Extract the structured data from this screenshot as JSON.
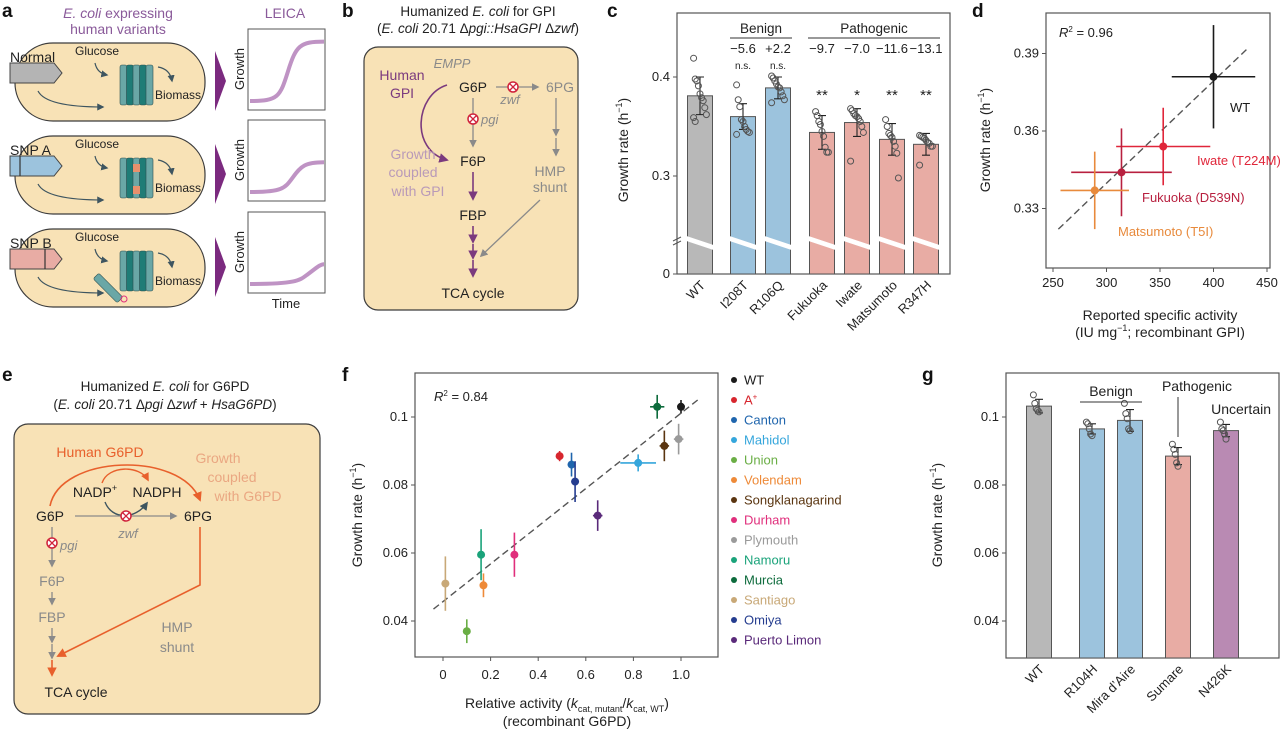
{
  "panels": {
    "a": {
      "letter": "a",
      "title_italic": "E. coli",
      "title_rest": " expressing",
      "title_line2": "human variants",
      "leica": "LEICA",
      "rows": [
        {
          "gene": "Normal",
          "glucose": "Glucose",
          "biomass": "Biomass",
          "ylabel": "Growth",
          "gene_color": "#b4b4b4",
          "growth_plateau": 0.9
        },
        {
          "gene": "SNP A",
          "glucose": "Glucose",
          "biomass": "Biomass",
          "ylabel": "Growth",
          "gene_color": "#9cc3dd",
          "growth_plateau": 0.45
        },
        {
          "gene": "SNP B",
          "glucose": "Glucose",
          "biomass": "Biomass",
          "ylabel": "Growth",
          "gene_color": "#e8aca4",
          "growth_plateau": 0.3
        }
      ],
      "xlabel": "Time",
      "colors": {
        "cell": "#f8e2b6",
        "protein": "#6aa7a6",
        "curve": "#bf93c4",
        "arrowhead": "#7b2a7f"
      }
    },
    "b": {
      "letter": "b",
      "title1_a": "Humanized ",
      "title1_i": "E. coli",
      "title1_b": " for GPI",
      "title2_a": "(",
      "title2_i": "E. coli",
      "title2_b": " 20.71 Δ",
      "title2_c": "pgi::HsaGPI",
      "title2_d": " Δ",
      "title2_e": "zwf",
      "title2_f": ")",
      "empp": "EMPP",
      "human_gpi": [
        "Human",
        "GPI"
      ],
      "g6p": "G6P",
      "sixpg": "6PG",
      "zwf": "zwf",
      "pgi": "pgi",
      "f6p": "F6P",
      "fbp": "FBP",
      "tca": "TCA cycle",
      "growth_coupled": [
        "Growth",
        "coupled",
        "with GPI"
      ],
      "hmp": [
        "HMP",
        "shunt"
      ],
      "colors": {
        "accent": "#7b3a7e",
        "muted": "#b99ab8",
        "knockout": "#d0243c"
      }
    },
    "e": {
      "letter": "e",
      "title1_a": "Humanized ",
      "title1_i": "E. coli",
      "title1_b": " for G6PD",
      "title2_a": "(",
      "title2_i": "E. coli",
      "title2_b": " 20.71 Δ",
      "title2_c": "pgi",
      "title2_d": " Δ",
      "title2_e": "zwf",
      "title2_f": "  + ",
      "title2_g": "HsaG6PD",
      "title2_h": ")",
      "human_g6pd": "Human G6PD",
      "growth_coupled": [
        "Growth",
        "coupled",
        "with G6PD"
      ],
      "nadp": "NADP",
      "nadp_sup": "+",
      "nadph": "NADPH",
      "g6p": "G6P",
      "sixpg": "6PG",
      "zwf": "zwf",
      "pgi": "pgi",
      "f6p": "F6P",
      "fbp": "FBP",
      "hmp": [
        "HMP",
        "shunt"
      ],
      "tca": "TCA cycle",
      "colors": {
        "accent": "#e8602c",
        "muted": "#eaa782",
        "knockout": "#d0243c"
      }
    }
  },
  "chart_data": [
    {
      "panel": "c",
      "type": "bar",
      "ylabel": "Growth rate (h",
      "ylabel_sup": "−1",
      "ylabel_end": ")",
      "yticks": [
        0,
        0.3,
        0.4
      ],
      "ytick_labels": [
        "0",
        "0.3",
        "0.4"
      ],
      "y_axis_break": true,
      "categories": [
        "WT",
        "I208T",
        "R106Q",
        "Fukuoka",
        "Iwate",
        "Matsumoto",
        "R347H"
      ],
      "values": [
        0.381,
        0.36,
        0.389,
        0.344,
        0.354,
        0.337,
        0.332
      ],
      "errors": [
        0.019,
        0.013,
        0.011,
        0.017,
        0.014,
        0.016,
        0.011
      ],
      "groups": [
        "WT",
        "Benign",
        "Benign",
        "Pathogenic",
        "Pathogenic",
        "Pathogenic",
        "Pathogenic"
      ],
      "group_labels": {
        "Benign": "Benign",
        "Pathogenic": "Pathogenic"
      },
      "effect_labels": [
        "",
        "−5.6",
        "+2.2",
        "−9.7",
        "−7.0",
        "−11.6",
        "−13.1"
      ],
      "significance": [
        "",
        "n.s.",
        "n.s.",
        "**",
        "*",
        "**",
        "**"
      ],
      "points": [
        [
          0.419,
          0.398,
          0.396,
          0.391,
          0.383,
          0.379,
          0.376,
          0.369,
          0.362,
          0.359,
          0.355
        ],
        [
          0.392,
          0.377,
          0.37,
          0.357,
          0.355,
          0.35,
          0.347,
          0.345,
          0.344,
          0.342
        ],
        [
          0.401,
          0.399,
          0.396,
          0.393,
          0.39,
          0.389,
          0.385,
          0.381,
          0.377,
          0.374
        ],
        [
          0.365,
          0.361,
          0.355,
          0.352,
          0.345,
          0.34,
          0.329,
          0.324,
          0.324
        ],
        [
          0.368,
          0.366,
          0.363,
          0.361,
          0.36,
          0.358,
          0.355,
          0.35,
          0.344,
          0.315
        ],
        [
          0.357,
          0.35,
          0.343,
          0.341,
          0.339,
          0.335,
          0.33,
          0.323,
          0.298
        ],
        [
          0.341,
          0.34,
          0.339,
          0.338,
          0.336,
          0.334,
          0.333,
          0.33,
          0.33,
          0.311
        ]
      ],
      "colors": {
        "WT": "#b8b8b8",
        "Benign": "#9cc3dd",
        "Pathogenic": "#e8aca4"
      }
    },
    {
      "panel": "d",
      "type": "scatter",
      "annotation": "R",
      "annotation_sup": "2",
      "annotation_val": " = 0.96",
      "xlabel": "Reported specific activity",
      "xlabel2_a": "(IU mg",
      "xlabel2_sup": "−1",
      "xlabel2_b": "; recombinant GPI)",
      "ylabel": "Growth rate (h",
      "ylabel_sup": "−1",
      "ylabel_end": ")",
      "xlim": [
        250,
        450
      ],
      "xticks": [
        250,
        300,
        350,
        400,
        450
      ],
      "yticks": [
        0.33,
        0.36,
        0.39
      ],
      "ytick_labels": [
        "0.33",
        "0.36",
        "0.39"
      ],
      "fit_line": [
        [
          255,
          0.322
        ],
        [
          432,
          0.392
        ]
      ],
      "points": [
        {
          "label": "WT",
          "x": 400,
          "y": 0.381,
          "xerr": 39,
          "yerr": 0.02,
          "color": "#1a1a1a"
        },
        {
          "label": "Iwate (T224M)",
          "x": 353,
          "y": 0.354,
          "xerr": 44,
          "yerr": 0.015,
          "color": "#e0263a"
        },
        {
          "label": "Fukuoka (D539N)",
          "x": 314,
          "y": 0.344,
          "xerr": 47,
          "yerr": 0.017,
          "color": "#b8203f"
        },
        {
          "label": "Matsumoto (T5I)",
          "x": 289,
          "y": 0.337,
          "xerr": 32,
          "yerr": 0.015,
          "color": "#e88a3c"
        }
      ]
    },
    {
      "panel": "f",
      "type": "scatter",
      "annotation": "R",
      "annotation_sup": "2",
      "annotation_val": " = 0.84",
      "xlabel_a": "Relative activity (",
      "xlabel_k1": "k",
      "xlabel_sub1": "cat, mutant",
      "xlabel_slash": "/",
      "xlabel_k2": "k",
      "xlabel_sub2": "cat, WT",
      "xlabel_b": ")",
      "xlabel2": "(recombinant G6PD)",
      "ylabel": "Growth rate (h",
      "ylabel_sup": "−1",
      "ylabel_end": ")",
      "xticks": [
        0,
        0.2,
        0.4,
        0.6,
        0.8,
        1.0
      ],
      "xtick_labels": [
        "0",
        "0.2",
        "0.4",
        "0.6",
        "0.8",
        "1.0"
      ],
      "yticks": [
        0.04,
        0.06,
        0.08,
        0.1
      ],
      "ytick_labels": [
        "0.04",
        "0.06",
        "0.08",
        "0.1"
      ],
      "legend_position": "right",
      "fit_line": [
        [
          -0.04,
          0.0435
        ],
        [
          1.07,
          0.105
        ]
      ],
      "points": [
        {
          "label": "WT",
          "sup": "",
          "x": 1.0,
          "y": 0.103,
          "xerr": 0,
          "yerr": 0.002,
          "color": "#1a1a1a"
        },
        {
          "label": "A",
          "sup": "+",
          "x": 0.49,
          "y": 0.0885,
          "xerr": 0,
          "yerr": 0.0015,
          "color": "#d7262e"
        },
        {
          "label": "Canton",
          "sup": "",
          "x": 0.54,
          "y": 0.086,
          "xerr": 0,
          "yerr": 0.0035,
          "color": "#1f65ad"
        },
        {
          "label": "Mahidol",
          "sup": "",
          "x": 0.82,
          "y": 0.0865,
          "xerr": 0.075,
          "yerr": 0.0025,
          "color": "#35a6dc"
        },
        {
          "label": "Union",
          "sup": "",
          "x": 0.1,
          "y": 0.037,
          "xerr": 0,
          "yerr": 0.0035,
          "color": "#6aae45"
        },
        {
          "label": "Volendam",
          "sup": "",
          "x": 0.17,
          "y": 0.0505,
          "xerr": 0,
          "yerr": 0.0035,
          "color": "#ee8a38"
        },
        {
          "label": "Songklanagarind",
          "sup": "",
          "x": 0.93,
          "y": 0.0915,
          "xerr": 0.02,
          "yerr": 0.0045,
          "color": "#5a3510"
        },
        {
          "label": "Durham",
          "sup": "",
          "x": 0.3,
          "y": 0.0595,
          "xerr": 0,
          "yerr": 0.0065,
          "color": "#e02f7c"
        },
        {
          "label": "Plymouth",
          "sup": "",
          "x": 0.99,
          "y": 0.0935,
          "xerr": 0.02,
          "yerr": 0.0045,
          "color": "#9a9a9a"
        },
        {
          "label": "Namoru",
          "sup": "",
          "x": 0.16,
          "y": 0.0595,
          "xerr": 0,
          "yerr": 0.0075,
          "color": "#1aa37a"
        },
        {
          "label": "Murcia",
          "sup": "",
          "x": 0.9,
          "y": 0.103,
          "xerr": 0.03,
          "yerr": 0.0035,
          "color": "#0d6b3c"
        },
        {
          "label": "Santiago",
          "sup": "",
          "x": 0.01,
          "y": 0.051,
          "xerr": 0,
          "yerr": 0.008,
          "color": "#c8a877"
        },
        {
          "label": "Omiya",
          "sup": "",
          "x": 0.555,
          "y": 0.081,
          "xerr": 0,
          "yerr": 0.006,
          "color": "#253d8f"
        },
        {
          "label": "Puerto Limon",
          "sup": "",
          "x": 0.65,
          "y": 0.071,
          "xerr": 0.02,
          "yerr": 0.0045,
          "color": "#5a2a7a"
        }
      ]
    },
    {
      "panel": "g",
      "type": "bar",
      "ylabel": "Growth rate (h",
      "ylabel_sup": "−1",
      "ylabel_end": ")",
      "yticks": [
        0.04,
        0.06,
        0.08,
        0.1
      ],
      "ytick_labels": [
        "0.04",
        "0.06",
        "0.08",
        "0.1"
      ],
      "categories": [
        "WT",
        "R104H",
        "Mira d’Aire",
        "Sumare",
        "N426K"
      ],
      "values": [
        0.1032,
        0.0965,
        0.099,
        0.0885,
        0.096
      ],
      "errors": [
        0.002,
        0.0015,
        0.0032,
        0.0025,
        0.0018
      ],
      "groups": [
        "WT",
        "Benign",
        "Benign",
        "Pathogenic",
        "Uncertain"
      ],
      "group_labels": {
        "Benign": "Benign",
        "Pathogenic": "Pathogenic",
        "Uncertain": "Uncertain"
      },
      "points": [
        [
          0.1065,
          0.104,
          0.1025,
          0.102,
          0.1015
        ],
        [
          0.0985,
          0.098,
          0.0965,
          0.095,
          0.0945
        ],
        [
          0.104,
          0.101,
          0.0995,
          0.0965,
          0.096
        ],
        [
          0.092,
          0.0905,
          0.089,
          0.0865,
          0.0855
        ],
        [
          0.0985,
          0.0965,
          0.096,
          0.095,
          0.0935
        ]
      ],
      "colors": {
        "WT": "#b8b8b8",
        "Benign": "#9cc3dd",
        "Pathogenic": "#e8aca4",
        "Uncertain": "#b98ab3"
      }
    }
  ]
}
